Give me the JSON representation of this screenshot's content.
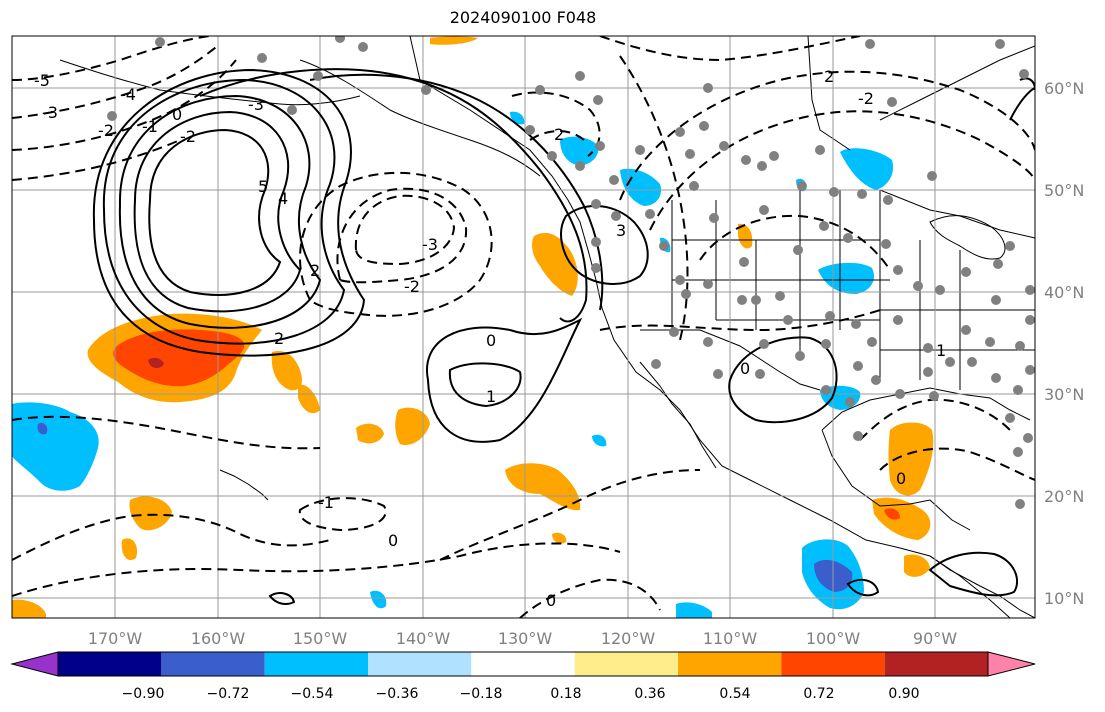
{
  "title": "2024090100 F048",
  "longitude_labels": [
    "170°W",
    "160°W",
    "150°W",
    "140°W",
    "130°W",
    "120°W",
    "110°W",
    "100°W",
    "90°W"
  ],
  "latitude_labels": [
    "60°N",
    "50°N",
    "40°N",
    "30°N",
    "20°N",
    "10°N"
  ],
  "colorbar": {
    "ticks": [
      "−0.90",
      "−0.72",
      "−0.54",
      "−0.36",
      "−0.18",
      "0.18",
      "0.36",
      "0.54",
      "0.72",
      "0.90"
    ],
    "colors": [
      "#9932cc",
      "#00008b",
      "#3a5fcd",
      "#00bfff",
      "#b0e2ff",
      "#ffffff",
      "#ffec8b",
      "#ffa500",
      "#ff4500",
      "#b22222",
      "#ff82ab"
    ]
  },
  "contour_labels": {
    "c_m5": "-5",
    "c_m4a": "-4",
    "c_m3a": "-3",
    "c_m2a": "-2",
    "c_m1a": "-1",
    "c_0a": "0",
    "c_m3b": "-3",
    "c_m2b": "-2",
    "c_p5": "5",
    "c_p4": "4",
    "c_p2": "2",
    "c_m3c": "-3",
    "c_m2c": "-2",
    "c_m2d": "2",
    "c_p3": "3",
    "c_0b": "0",
    "c_p1": "1",
    "c_m1b": "-1",
    "c_0c": "0",
    "c_0d": "0",
    "c_m2e": "2",
    "c_m2f": "2",
    "c_0e": "0",
    "c_p1b": "1",
    "c_0f": "0",
    "c_m2g": "-2"
  },
  "stations_shown": true,
  "line_style": {
    "positive": "solid",
    "negative": "dashed",
    "color": "#000000"
  }
}
